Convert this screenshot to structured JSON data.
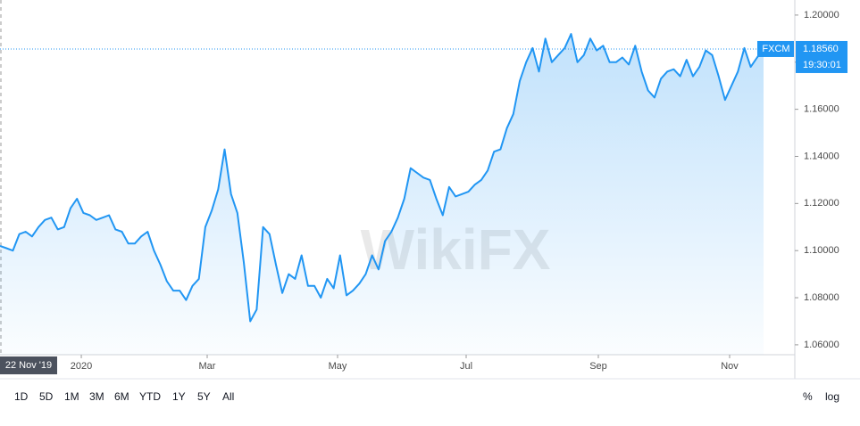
{
  "chart_data": {
    "type": "line",
    "series_name": "FXCM",
    "last_value_label": "1.18560",
    "time_label": "19:30:01",
    "start_label": "22 Nov '19",
    "watermark": "WikiFX",
    "color": "#2196f3",
    "values": [
      1.102,
      1.101,
      1.1,
      1.107,
      1.108,
      1.106,
      1.11,
      1.113,
      1.114,
      1.109,
      1.11,
      1.118,
      1.122,
      1.116,
      1.115,
      1.113,
      1.114,
      1.115,
      1.109,
      1.108,
      1.103,
      1.103,
      1.106,
      1.108,
      1.1,
      1.094,
      1.087,
      1.083,
      1.083,
      1.079,
      1.085,
      1.088,
      1.11,
      1.117,
      1.126,
      1.143,
      1.124,
      1.116,
      1.095,
      1.07,
      1.075,
      1.11,
      1.107,
      1.094,
      1.082,
      1.09,
      1.088,
      1.098,
      1.085,
      1.085,
      1.08,
      1.088,
      1.084,
      1.098,
      1.081,
      1.083,
      1.086,
      1.09,
      1.098,
      1.092,
      1.104,
      1.108,
      1.114,
      1.122,
      1.135,
      1.133,
      1.131,
      1.13,
      1.122,
      1.115,
      1.127,
      1.123,
      1.124,
      1.125,
      1.128,
      1.13,
      1.134,
      1.142,
      1.143,
      1.152,
      1.158,
      1.172,
      1.18,
      1.186,
      1.176,
      1.19,
      1.18,
      1.183,
      1.186,
      1.192,
      1.18,
      1.183,
      1.19,
      1.185,
      1.187,
      1.18,
      1.18,
      1.182,
      1.179,
      1.187,
      1.176,
      1.168,
      1.165,
      1.173,
      1.176,
      1.177,
      1.174,
      1.181,
      1.174,
      1.178,
      1.185,
      1.183,
      1.174,
      1.164,
      1.17,
      1.176,
      1.186,
      1.178,
      1.182,
      1.1856
    ],
    "xlim": [
      0,
      123.87
    ],
    "xticks": [
      {
        "value": 12.67,
        "label": "2020"
      },
      {
        "value": 32.29,
        "label": "Mar"
      },
      {
        "value": 52.61,
        "label": "May"
      },
      {
        "value": 72.65,
        "label": "Jul"
      },
      {
        "value": 93.25,
        "label": "Sep"
      },
      {
        "value": 113.71,
        "label": "Nov"
      }
    ],
    "ylim": [
      1.0558,
      1.2064
    ],
    "yticks": [
      {
        "value": 1.06,
        "label": "1.06000"
      },
      {
        "value": 1.08,
        "label": "1.08000"
      },
      {
        "value": 1.1,
        "label": "1.10000"
      },
      {
        "value": 1.12,
        "label": "1.12000"
      },
      {
        "value": 1.14,
        "label": "1.14000"
      },
      {
        "value": 1.16,
        "label": "1.16000"
      },
      {
        "value": 1.18,
        "label": "1.18000"
      },
      {
        "value": 1.2,
        "label": "1.20000"
      }
    ]
  },
  "toolbar": {
    "ranges": [
      "1D",
      "5D",
      "1M",
      "3M",
      "6M",
      "YTD",
      "1Y",
      "5Y",
      "All"
    ],
    "percent": "%",
    "log": "log"
  }
}
